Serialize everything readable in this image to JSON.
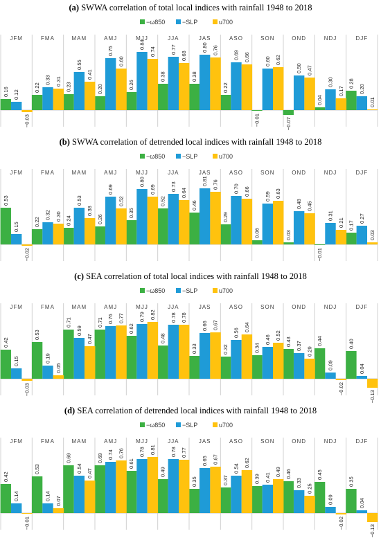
{
  "chart_data": [
    {
      "type": "bar",
      "panel": "(a)",
      "title": "SWWA correlation of total local indices with rainfall 1948 to 2018",
      "categories": [
        "JFM",
        "FMA",
        "MAM",
        "AMJ",
        "MJJ",
        "JJA",
        "JAS",
        "ASO",
        "SON",
        "OND",
        "NDJ",
        "DJF"
      ],
      "series": [
        {
          "name": "−ω850",
          "values": [
            0.16,
            0.22,
            0.23,
            0.2,
            0.26,
            0.38,
            0.38,
            0.22,
            -0.01,
            -0.07,
            0.04,
            0.28
          ]
        },
        {
          "name": "−SLP",
          "values": [
            0.12,
            0.33,
            0.55,
            0.75,
            0.84,
            0.77,
            0.8,
            0.69,
            0.6,
            0.5,
            0.3,
            0.2
          ]
        },
        {
          "name": "u700",
          "values": [
            -0.03,
            0.31,
            0.41,
            0.6,
            0.74,
            0.68,
            0.76,
            0.66,
            0.62,
            0.47,
            0.17,
            0.01
          ]
        }
      ],
      "labels": [
        [
          "0.16",
          "0.22",
          "0.23",
          "0.20",
          "0.26",
          "0.38",
          "0.38",
          "0.22",
          "−0.01",
          "−0.07",
          "0.04",
          "0.28"
        ],
        [
          "0.12",
          "0.33",
          "0.55",
          "0.75",
          "0.84",
          "0.77",
          "0.80",
          "0.69",
          "0.60",
          "0.50",
          "0.30",
          "0.20"
        ],
        [
          "−0.03",
          "0.31",
          "0.41",
          "0.60",
          "0.74",
          "0.68",
          "0.76",
          "0.66",
          "0.62",
          "0.47",
          "0.17",
          "0.01"
        ]
      ]
    },
    {
      "type": "bar",
      "panel": "(b)",
      "title": "SWWA correlation of detrended local indices with rainfall 1948 to 2018",
      "categories": [
        "JFM",
        "FMA",
        "MAM",
        "AMJ",
        "MJJ",
        "JJA",
        "JAS",
        "ASO",
        "SON",
        "OND",
        "NDJ",
        "DJF"
      ],
      "series": [
        {
          "name": "−ω850",
          "values": [
            0.53,
            0.22,
            0.24,
            0.26,
            0.35,
            0.52,
            0.46,
            0.29,
            0.06,
            0.03,
            -0.01,
            0.17
          ]
        },
        {
          "name": "−SLP",
          "values": [
            0.15,
            0.32,
            0.53,
            0.69,
            0.8,
            0.73,
            0.81,
            0.7,
            0.59,
            0.48,
            0.31,
            0.27
          ]
        },
        {
          "name": "u700",
          "values": [
            -0.02,
            0.3,
            0.38,
            0.52,
            0.69,
            0.64,
            0.76,
            0.66,
            0.63,
            0.45,
            0.21,
            0.03
          ]
        }
      ],
      "labels": [
        [
          "0.53",
          "0.22",
          "0.24",
          "0.26",
          "0.35",
          "0.52",
          "0.46",
          "0.29",
          "0.06",
          "0.03",
          "−0.01",
          "0.17"
        ],
        [
          "0.15",
          "0.32",
          "0.53",
          "0.69",
          "0.80",
          "0.73",
          "0.81",
          "0.70",
          "0.59",
          "0.48",
          "0.31",
          "0.27"
        ],
        [
          "−0.02",
          "0.30",
          "0.38",
          "0.52",
          "0.69",
          "0.64",
          "0.76",
          "0.66",
          "0.63",
          "0.45",
          "0.21",
          "0.03"
        ]
      ]
    },
    {
      "type": "bar",
      "panel": "(c)",
      "title": "SEA correlation of total local indices with rainfall 1948 to 2018",
      "categories": [
        "JFM",
        "FMA",
        "MAM",
        "AMJ",
        "MJJ",
        "JJA",
        "JAS",
        "ASO",
        "SON",
        "OND",
        "NDJ",
        "DJF"
      ],
      "series": [
        {
          "name": "−ω850",
          "values": [
            0.42,
            0.53,
            0.71,
            0.71,
            0.62,
            0.48,
            0.33,
            0.32,
            0.34,
            0.43,
            0.44,
            0.4
          ]
        },
        {
          "name": "−SLP",
          "values": [
            0.15,
            0.19,
            0.59,
            0.76,
            0.79,
            0.78,
            0.66,
            0.56,
            0.46,
            0.37,
            0.09,
            0.04
          ]
        },
        {
          "name": "u700",
          "values": [
            -0.03,
            0.05,
            0.47,
            0.77,
            0.82,
            0.78,
            0.67,
            0.64,
            0.52,
            0.29,
            -0.02,
            -0.13
          ]
        }
      ],
      "labels": [
        [
          "0.42",
          "0.53",
          "0.71",
          "0.71",
          "0.62",
          "0.48",
          "0.33",
          "0.32",
          "0.34",
          "0.43",
          "0.44",
          "0.40"
        ],
        [
          "0.15",
          "0.19",
          "0.59",
          "0.76",
          "0.79",
          "0.78",
          "0.66",
          "0.56",
          "0.46",
          "0.37",
          "0.09",
          "0.04"
        ],
        [
          "−0.03",
          "0.05",
          "0.47",
          "0.77",
          "0.82",
          "0.78",
          "0.67",
          "0.64",
          "0.52",
          "0.29",
          "−0.02",
          "−0.13"
        ]
      ]
    },
    {
      "type": "bar",
      "panel": "(d)",
      "title": "SEA correlation of detrended local indices with rainfall 1948 to 2018",
      "categories": [
        "JFM",
        "FMA",
        "MAM",
        "AMJ",
        "MJJ",
        "JJA",
        "JAS",
        "ASO",
        "SON",
        "OND",
        "NDJ",
        "DJF"
      ],
      "series": [
        {
          "name": "−ω850",
          "values": [
            0.42,
            0.53,
            0.69,
            0.69,
            0.61,
            0.49,
            0.35,
            0.37,
            0.39,
            0.46,
            0.45,
            0.35
          ]
        },
        {
          "name": "−SLP",
          "values": [
            0.14,
            0.14,
            0.54,
            0.74,
            0.78,
            0.78,
            0.65,
            0.54,
            0.41,
            0.33,
            0.09,
            0.04
          ]
        },
        {
          "name": "u700",
          "values": [
            -0.01,
            0.07,
            0.47,
            0.76,
            0.81,
            0.77,
            0.67,
            0.62,
            0.49,
            0.25,
            -0.02,
            -0.13
          ]
        }
      ],
      "labels": [
        [
          "0.42",
          "0.53",
          "0.69",
          "0.69",
          "0.61",
          "0.49",
          "0.35",
          "0.37",
          "0.39",
          "0.46",
          "0.45",
          "0.35"
        ],
        [
          "0.14",
          "0.14",
          "0.54",
          "0.74",
          "0.78",
          "0.78",
          "0.65",
          "0.54",
          "0.41",
          "0.33",
          "0.09",
          "0.04"
        ],
        [
          "−0.01",
          "0.07",
          "0.47",
          "0.76",
          "0.81",
          "0.77",
          "0.67",
          "0.62",
          "0.49",
          "0.25",
          "−0.02",
          "−0.13"
        ]
      ]
    }
  ],
  "legend": [
    {
      "name": "−ω850",
      "color": "#3cb043"
    },
    {
      "name": "−SLP",
      "color": "#1f9bd7"
    },
    {
      "name": "u700",
      "color": "#ffc20e"
    }
  ]
}
